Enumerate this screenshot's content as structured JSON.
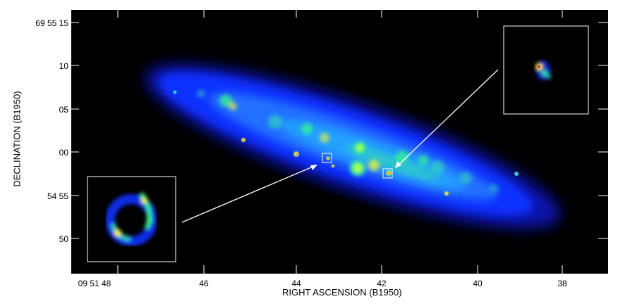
{
  "figure": {
    "x_axis_title": "RIGHT ASCENSION (B1950)",
    "y_axis_title": "DECLINATION (B1950)",
    "x_ticks": [
      "09 51 48",
      "46",
      "44",
      "42",
      "40",
      "38"
    ],
    "y_ticks": [
      "69 55 15",
      "10",
      "05",
      "00",
      "54 55",
      "50"
    ],
    "colors": {
      "background": "#000000",
      "frame": "#ffffff",
      "galaxy_low": "#1030ff",
      "galaxy_mid": "#20a0ff",
      "galaxy_high": "#30ff80",
      "hotspot": "#ffff20",
      "peak": "#ff2010"
    }
  }
}
